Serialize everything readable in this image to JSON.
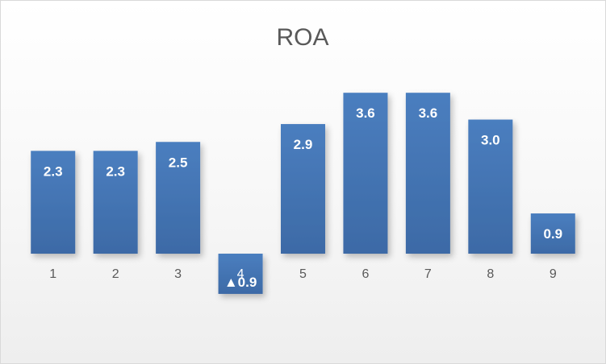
{
  "chart_data": {
    "type": "bar",
    "title": "ROA",
    "categories": [
      "1",
      "2",
      "3",
      "4",
      "5",
      "6",
      "7",
      "8",
      "9"
    ],
    "values": [
      2.3,
      2.3,
      2.5,
      -0.9,
      2.9,
      3.6,
      3.6,
      3.0,
      0.9
    ],
    "data_labels": [
      "2.3",
      "2.3",
      "2.5",
      "▲0.9",
      "2.9",
      "3.6",
      "3.6",
      "3.0",
      "0.9"
    ],
    "xlabel": "",
    "ylabel": "",
    "ylim": [
      -0.9,
      3.6
    ],
    "grid": false,
    "legend": "none",
    "bar_color": "#4a7ebf",
    "bar_color_dark": "#3d6aa6",
    "label_color": "#ffffff",
    "tick_label_color": "#595959",
    "title_color": "#595959"
  }
}
